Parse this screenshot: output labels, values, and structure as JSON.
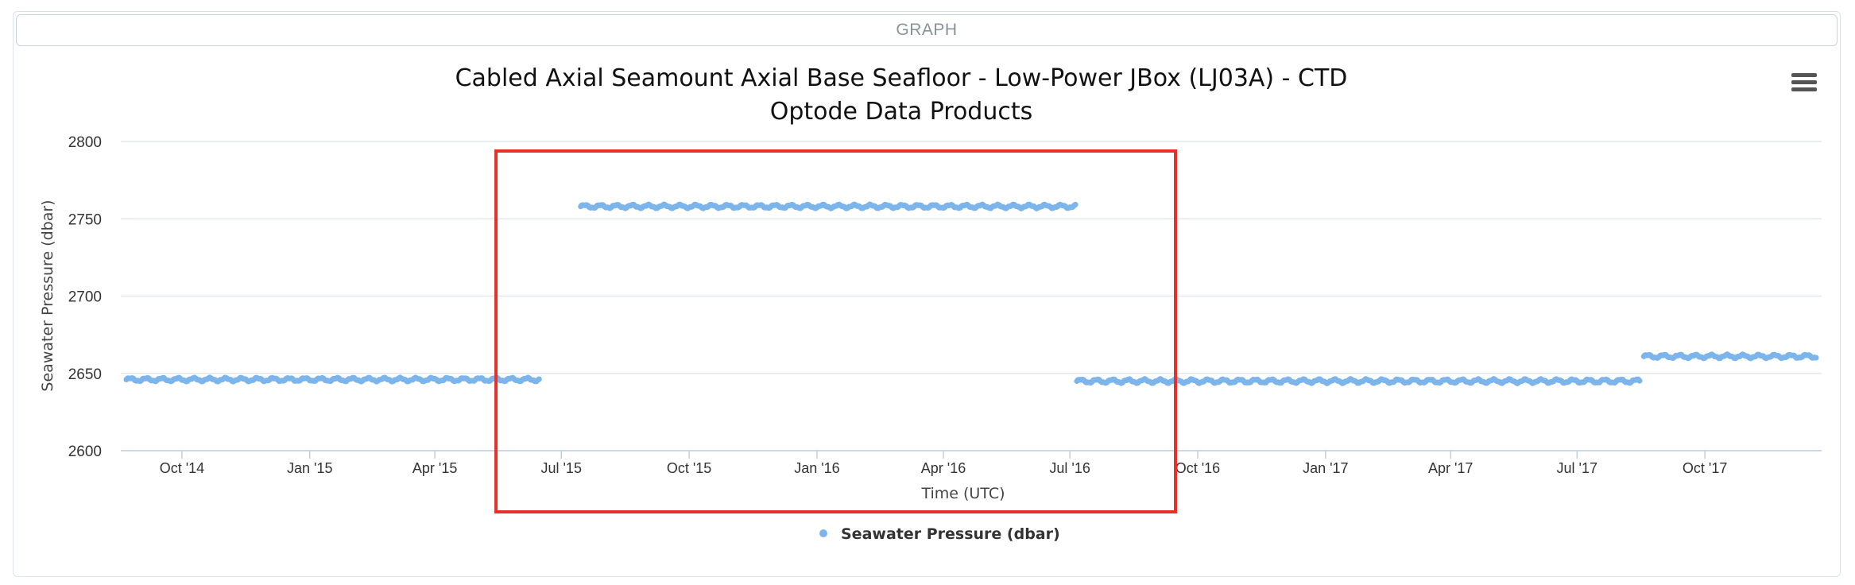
{
  "panel": {
    "header_label": "GRAPH"
  },
  "chart_data": {
    "type": "line",
    "title_lines": [
      "Cabled Axial Seamount Axial Base Seafloor - Low-Power JBox (LJ03A) - CTD",
      "Optode Data Products"
    ],
    "xlabel": "Time (UTC)",
    "ylabel": "Seawater Pressure (dbar)",
    "ylim": [
      2600,
      2800
    ],
    "yticks": [
      2600,
      2650,
      2700,
      2750,
      2800
    ],
    "xlim": [
      "2014-08-18",
      "2017-12-24"
    ],
    "xticks": [
      {
        "date": "2014-10-01",
        "label": "Oct '14"
      },
      {
        "date": "2015-01-01",
        "label": "Jan '15"
      },
      {
        "date": "2015-04-01",
        "label": "Apr '15"
      },
      {
        "date": "2015-07-01",
        "label": "Jul '15"
      },
      {
        "date": "2015-10-01",
        "label": "Oct '15"
      },
      {
        "date": "2016-01-01",
        "label": "Jan '16"
      },
      {
        "date": "2016-04-01",
        "label": "Apr '16"
      },
      {
        "date": "2016-07-01",
        "label": "Jul '16"
      },
      {
        "date": "2016-10-01",
        "label": "Oct '16"
      },
      {
        "date": "2017-01-01",
        "label": "Jan '17"
      },
      {
        "date": "2017-04-01",
        "label": "Apr '17"
      },
      {
        "date": "2017-07-01",
        "label": "Jul '17"
      },
      {
        "date": "2017-10-01",
        "label": "Oct '17"
      }
    ],
    "grid": true,
    "legend_position": "bottom-center",
    "series": [
      {
        "name": "Seawater Pressure (dbar)",
        "color": "#7cb5ec",
        "segments": [
          {
            "start": "2014-08-22",
            "end": "2015-06-15",
            "level": 2646,
            "amplitude": 1.0
          },
          {
            "start": "2015-07-15",
            "end": "2016-07-05",
            "level": 2758,
            "amplitude": 1.0
          },
          {
            "start": "2016-07-06",
            "end": "2017-08-15",
            "level": 2645,
            "amplitude": 1.1
          },
          {
            "start": "2017-08-18",
            "end": "2017-12-20",
            "level": 2661,
            "amplitude": 1.0
          }
        ]
      }
    ],
    "annotation": {
      "type": "highlight-box",
      "color": "#e8302a",
      "x_start": "2015-05-15",
      "x_end": "2016-09-15"
    }
  }
}
